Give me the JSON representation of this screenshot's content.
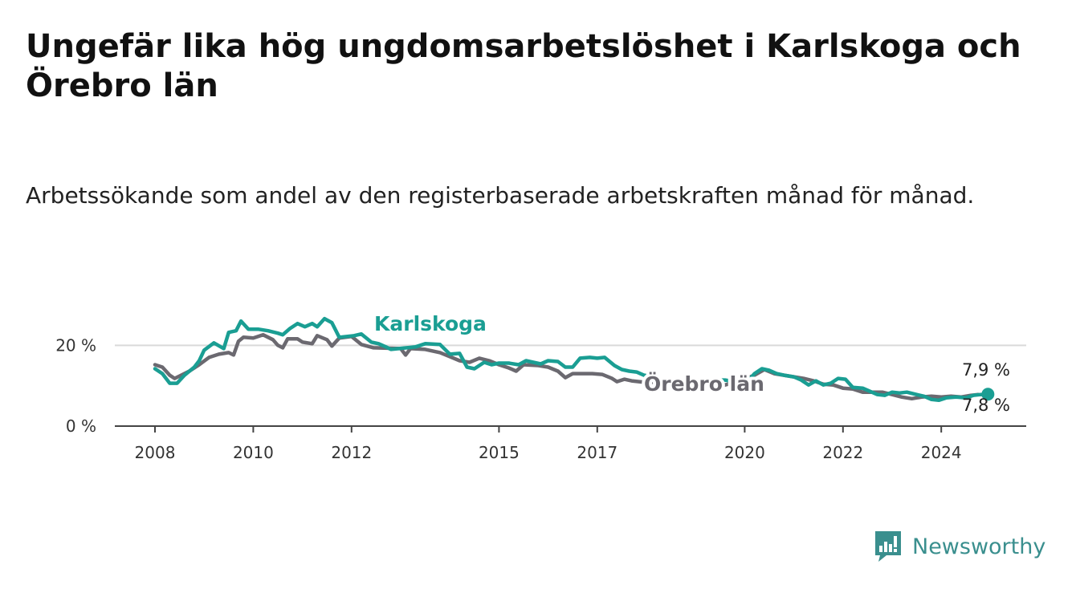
{
  "title": "Ungefär lika hög ungdomsarbetslöshet i Karlskoga och Örebro län",
  "subtitle": "Arbetssökande som andel av den registerbaserade arbetskraften månad för månad.",
  "brand": {
    "name": "Newsworthy",
    "icon": "newsworthy-logo-icon",
    "color": "#3a8f8e"
  },
  "chart_data": {
    "type": "line",
    "title": "",
    "xlabel": "",
    "ylabel": "",
    "ylim": [
      0,
      30
    ],
    "xlim": [
      2008.0,
      2025.0
    ],
    "y_ticks": [
      {
        "value": 0,
        "label": "0 %"
      },
      {
        "value": 20,
        "label": "20 %"
      }
    ],
    "x_ticks": [
      {
        "value": 2008,
        "label": "2008"
      },
      {
        "value": 2010,
        "label": "2010"
      },
      {
        "value": 2012,
        "label": "2012"
      },
      {
        "value": 2015,
        "label": "2015"
      },
      {
        "value": 2017,
        "label": "2017"
      },
      {
        "value": 2020,
        "label": "2020"
      },
      {
        "value": 2022,
        "label": "2022"
      },
      {
        "value": 2024,
        "label": "2024"
      }
    ],
    "grid": "horizontal",
    "legend": "inline labels",
    "series": [
      {
        "name": "Örebro län",
        "color": "#6b6970",
        "end_value_label": "7,8 %",
        "points": [
          [
            2008.0,
            15.2
          ],
          [
            2008.15,
            14.6
          ],
          [
            2008.3,
            12.6
          ],
          [
            2008.4,
            11.8
          ],
          [
            2008.5,
            12.4
          ],
          [
            2008.7,
            13.6
          ],
          [
            2008.9,
            15.2
          ],
          [
            2009.1,
            17.0
          ],
          [
            2009.3,
            17.8
          ],
          [
            2009.5,
            18.2
          ],
          [
            2009.6,
            17.6
          ],
          [
            2009.7,
            21.0
          ],
          [
            2009.8,
            22.0
          ],
          [
            2010.0,
            21.8
          ],
          [
            2010.2,
            22.6
          ],
          [
            2010.4,
            21.4
          ],
          [
            2010.5,
            20.0
          ],
          [
            2010.6,
            19.4
          ],
          [
            2010.7,
            21.6
          ],
          [
            2010.9,
            21.6
          ],
          [
            2011.0,
            20.8
          ],
          [
            2011.2,
            20.4
          ],
          [
            2011.3,
            22.4
          ],
          [
            2011.5,
            21.4
          ],
          [
            2011.6,
            19.8
          ],
          [
            2011.75,
            21.8
          ],
          [
            2012.0,
            22.2
          ],
          [
            2012.2,
            20.2
          ],
          [
            2012.45,
            19.4
          ],
          [
            2013.0,
            19.2
          ],
          [
            2013.1,
            17.6
          ],
          [
            2013.2,
            19.2
          ],
          [
            2013.5,
            19.0
          ],
          [
            2013.8,
            18.2
          ],
          [
            2014.0,
            17.2
          ],
          [
            2014.2,
            16.2
          ],
          [
            2014.4,
            15.8
          ],
          [
            2014.6,
            16.8
          ],
          [
            2014.8,
            16.2
          ],
          [
            2015.0,
            15.2
          ],
          [
            2015.2,
            14.4
          ],
          [
            2015.35,
            13.6
          ],
          [
            2015.5,
            15.2
          ],
          [
            2015.8,
            15.0
          ],
          [
            2016.0,
            14.6
          ],
          [
            2016.2,
            13.6
          ],
          [
            2016.35,
            12.0
          ],
          [
            2016.5,
            13.0
          ],
          [
            2016.7,
            13.0
          ],
          [
            2016.9,
            13.0
          ],
          [
            2017.1,
            12.8
          ],
          [
            2017.3,
            11.8
          ],
          [
            2017.4,
            11.0
          ],
          [
            2017.55,
            11.6
          ],
          [
            2017.7,
            11.2
          ],
          [
            2017.85,
            11.0
          ],
          [
            2018.0,
            10.8
          ],
          [
            2019.3,
            11.4
          ],
          [
            2019.6,
            10.2
          ],
          [
            2019.8,
            10.8
          ],
          [
            2020.2,
            12.6
          ],
          [
            2020.4,
            14.0
          ],
          [
            2020.6,
            13.0
          ],
          [
            2020.8,
            12.6
          ],
          [
            2021.0,
            12.2
          ],
          [
            2021.2,
            11.8
          ],
          [
            2021.4,
            11.2
          ],
          [
            2021.6,
            10.4
          ],
          [
            2021.8,
            10.2
          ],
          [
            2022.0,
            9.4
          ],
          [
            2022.2,
            9.2
          ],
          [
            2022.4,
            8.4
          ],
          [
            2022.6,
            8.4
          ],
          [
            2022.8,
            8.4
          ],
          [
            2023.0,
            7.8
          ],
          [
            2023.2,
            7.2
          ],
          [
            2023.4,
            6.8
          ],
          [
            2023.6,
            7.2
          ],
          [
            2023.8,
            7.4
          ],
          [
            2024.0,
            7.2
          ],
          [
            2024.2,
            7.4
          ],
          [
            2024.4,
            7.2
          ],
          [
            2024.6,
            7.6
          ],
          [
            2024.75,
            7.8
          ]
        ]
      },
      {
        "name": "Karlskoga",
        "color": "#1a9e93",
        "end_value_label": "7,9 %",
        "points": [
          [
            2008.0,
            14.2
          ],
          [
            2008.15,
            13.0
          ],
          [
            2008.3,
            10.6
          ],
          [
            2008.45,
            10.6
          ],
          [
            2008.6,
            12.6
          ],
          [
            2008.8,
            14.6
          ],
          [
            2008.9,
            16.2
          ],
          [
            2009.0,
            18.8
          ],
          [
            2009.2,
            20.6
          ],
          [
            2009.4,
            19.2
          ],
          [
            2009.5,
            23.2
          ],
          [
            2009.65,
            23.6
          ],
          [
            2009.75,
            26.0
          ],
          [
            2009.9,
            24.0
          ],
          [
            2010.1,
            24.0
          ],
          [
            2010.3,
            23.6
          ],
          [
            2010.5,
            23.0
          ],
          [
            2010.6,
            22.6
          ],
          [
            2010.75,
            24.2
          ],
          [
            2010.9,
            25.4
          ],
          [
            2011.05,
            24.6
          ],
          [
            2011.2,
            25.4
          ],
          [
            2011.3,
            24.6
          ],
          [
            2011.45,
            26.6
          ],
          [
            2011.6,
            25.6
          ],
          [
            2011.75,
            22.0
          ],
          [
            2011.9,
            22.2
          ],
          [
            2012.05,
            22.4
          ],
          [
            2012.2,
            22.8
          ],
          [
            2012.4,
            20.8
          ],
          [
            2012.55,
            20.4
          ],
          [
            2012.7,
            19.6
          ],
          [
            2012.8,
            19.0
          ],
          [
            2013.3,
            19.6
          ],
          [
            2013.5,
            20.4
          ],
          [
            2013.8,
            20.2
          ],
          [
            2014.0,
            17.8
          ],
          [
            2014.2,
            18.0
          ],
          [
            2014.35,
            14.6
          ],
          [
            2014.5,
            14.2
          ],
          [
            2014.7,
            15.8
          ],
          [
            2014.85,
            15.2
          ],
          [
            2015.0,
            15.6
          ],
          [
            2015.2,
            15.6
          ],
          [
            2015.4,
            15.2
          ],
          [
            2015.55,
            16.2
          ],
          [
            2015.7,
            15.8
          ],
          [
            2015.85,
            15.4
          ],
          [
            2016.0,
            16.2
          ],
          [
            2016.2,
            16.0
          ],
          [
            2016.35,
            14.6
          ],
          [
            2016.5,
            14.6
          ],
          [
            2016.65,
            16.8
          ],
          [
            2016.85,
            17.0
          ],
          [
            2017.0,
            16.8
          ],
          [
            2017.15,
            17.0
          ],
          [
            2017.35,
            15.0
          ],
          [
            2017.5,
            14.0
          ],
          [
            2017.65,
            13.6
          ],
          [
            2017.8,
            13.4
          ],
          [
            2017.95,
            12.6
          ],
          [
            2018.1,
            12.4
          ],
          [
            2018.3,
            11.4
          ],
          [
            2019.6,
            11.4
          ],
          [
            2019.8,
            11.0
          ],
          [
            2020.1,
            11.6
          ],
          [
            2020.2,
            13.0
          ],
          [
            2020.35,
            14.2
          ],
          [
            2020.5,
            13.8
          ],
          [
            2020.65,
            13.0
          ],
          [
            2020.8,
            12.6
          ],
          [
            2021.0,
            12.2
          ],
          [
            2021.15,
            11.4
          ],
          [
            2021.3,
            10.2
          ],
          [
            2021.45,
            11.2
          ],
          [
            2021.6,
            10.2
          ],
          [
            2021.75,
            10.6
          ],
          [
            2021.9,
            11.8
          ],
          [
            2022.05,
            11.6
          ],
          [
            2022.2,
            9.6
          ],
          [
            2022.4,
            9.4
          ],
          [
            2022.55,
            8.6
          ],
          [
            2022.7,
            7.8
          ],
          [
            2022.85,
            7.6
          ],
          [
            2023.0,
            8.4
          ],
          [
            2023.15,
            8.2
          ],
          [
            2023.3,
            8.4
          ],
          [
            2023.5,
            7.8
          ],
          [
            2023.65,
            7.4
          ],
          [
            2023.8,
            6.6
          ],
          [
            2023.95,
            6.4
          ],
          [
            2024.1,
            7.0
          ],
          [
            2024.3,
            7.2
          ],
          [
            2024.5,
            7.0
          ],
          [
            2024.65,
            7.6
          ],
          [
            2024.8,
            7.8
          ],
          [
            2024.95,
            7.9
          ]
        ]
      }
    ]
  }
}
